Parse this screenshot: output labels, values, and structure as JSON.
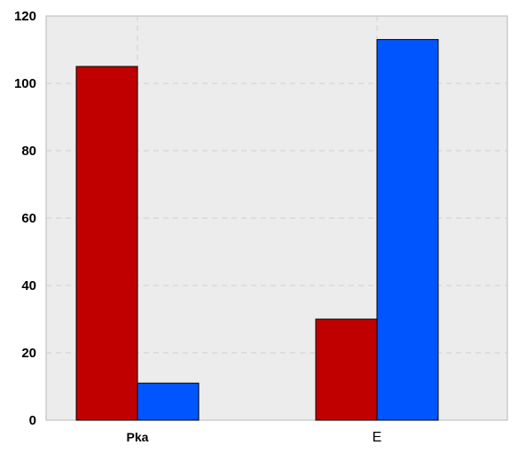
{
  "chart_data": {
    "type": "bar",
    "title": "",
    "xlabel": "",
    "ylabel": "",
    "categories": [
      "Pka",
      "E"
    ],
    "category_label_bold": [
      true,
      false
    ],
    "series": [
      {
        "color": "#c00000",
        "values": [
          105,
          30
        ]
      },
      {
        "color": "#0055ff",
        "values": [
          11,
          113
        ]
      }
    ],
    "ylim": [
      0,
      120
    ],
    "yticks": [
      0,
      20,
      40,
      60,
      80,
      100,
      120
    ],
    "ytick_labels": [
      "0",
      "20",
      "40",
      "60",
      "80",
      "100",
      "120"
    ],
    "grid": true,
    "legend": false
  }
}
